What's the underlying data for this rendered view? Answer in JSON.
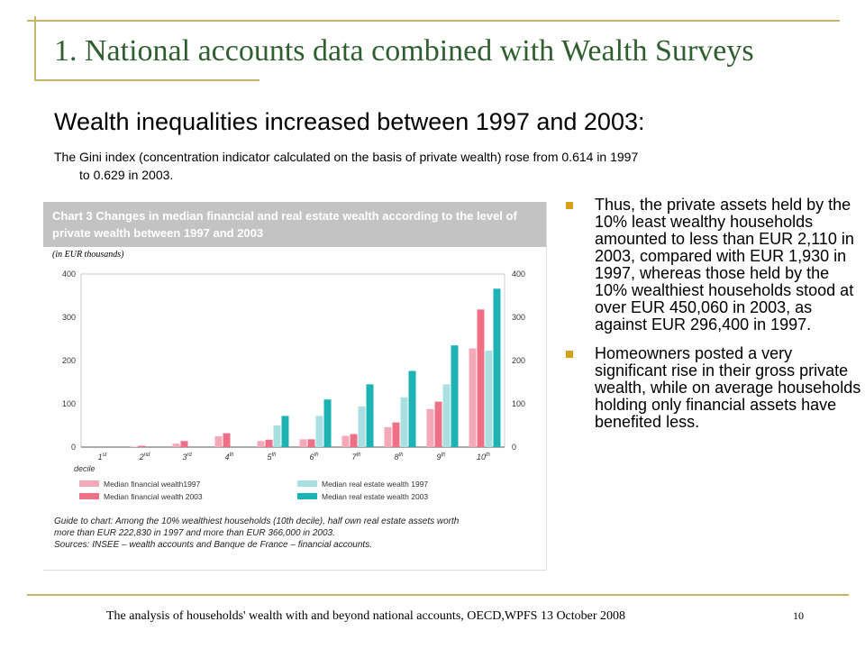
{
  "slide": {
    "title": "1. National accounts data combined with Wealth Surveys",
    "subtitle": "Wealth inequalities increased between 1997 and 2003:",
    "gini_line1": "The Gini index (concentration indicator calculated on the basis of private wealth) rose from 0.614 in 1997",
    "gini_line2": "to 0.629 in 2003."
  },
  "chart_header": {
    "title": "Chart 3  Changes in median financial and real estate wealth according to the level of private wealth between 1997 and 2003",
    "unit": "(in EUR thousands)",
    "decile_label": "decile",
    "guide": "Guide to chart: Among the 10% wealthiest households (10th decile), half own real estate assets worth more than EUR 222,830 in 1997 and more than EUR 366,000 in 2003.",
    "sources": "Sources: INSEE – wealth accounts and Banque de France – financial accounts."
  },
  "chart_data": {
    "type": "bar",
    "categories": [
      {
        "num": "1",
        "sup": "st"
      },
      {
        "num": "2",
        "sup": "nd"
      },
      {
        "num": "3",
        "sup": "rd"
      },
      {
        "num": "4",
        "sup": "th"
      },
      {
        "num": "5",
        "sup": "th"
      },
      {
        "num": "6",
        "sup": "th"
      },
      {
        "num": "7",
        "sup": "th"
      },
      {
        "num": "8",
        "sup": "th"
      },
      {
        "num": "9",
        "sup": "th"
      },
      {
        "num": "10",
        "sup": "th"
      }
    ],
    "series": [
      {
        "name": "Median financial wealth1997",
        "color": "#f4a9b8",
        "values": [
          0,
          1,
          8,
          25,
          14,
          18,
          26,
          46,
          88,
          228
        ]
      },
      {
        "name": "Median financial wealth 2003",
        "color": "#ef6f86",
        "values": [
          0,
          3,
          14,
          32,
          17,
          18,
          30,
          57,
          105,
          318
        ]
      },
      {
        "name": "Median real estate wealth 1997",
        "color": "#a9dfe0",
        "values": [
          0,
          0,
          0,
          0,
          50,
          72,
          94,
          115,
          145,
          223
        ]
      },
      {
        "name": "Median real estate wealth 2003",
        "color": "#1db3b3",
        "values": [
          0,
          0,
          0,
          0,
          72,
          110,
          145,
          176,
          235,
          366
        ]
      }
    ],
    "yticks": [
      "0",
      "100",
      "200",
      "300",
      "400"
    ],
    "ylim": [
      0,
      400
    ],
    "grid": false,
    "legend": "bottom"
  },
  "bullets": [
    "Thus, the private assets held by the 10% least wealthy households amounted to less than EUR 2,110 in 2003, compared with EUR 1,930 in 1997, whereas those held by the 10% wealthiest households stood at over EUR 450,060 in 2003, as against EUR 296,400 in 1997.",
    "Homeowners posted a very significant rise in their gross private wealth, while on average households holding only financial assets have benefited less."
  ],
  "footer": {
    "text": "The analysis of households' wealth with and beyond national accounts, OECD,WPFS 13 October 2008",
    "page": "10"
  },
  "colors": {
    "title": "#2f5f2f",
    "accent_line": "#c8b46a",
    "bullet": "#d4a017",
    "chart_header": "#c3c3c3"
  }
}
